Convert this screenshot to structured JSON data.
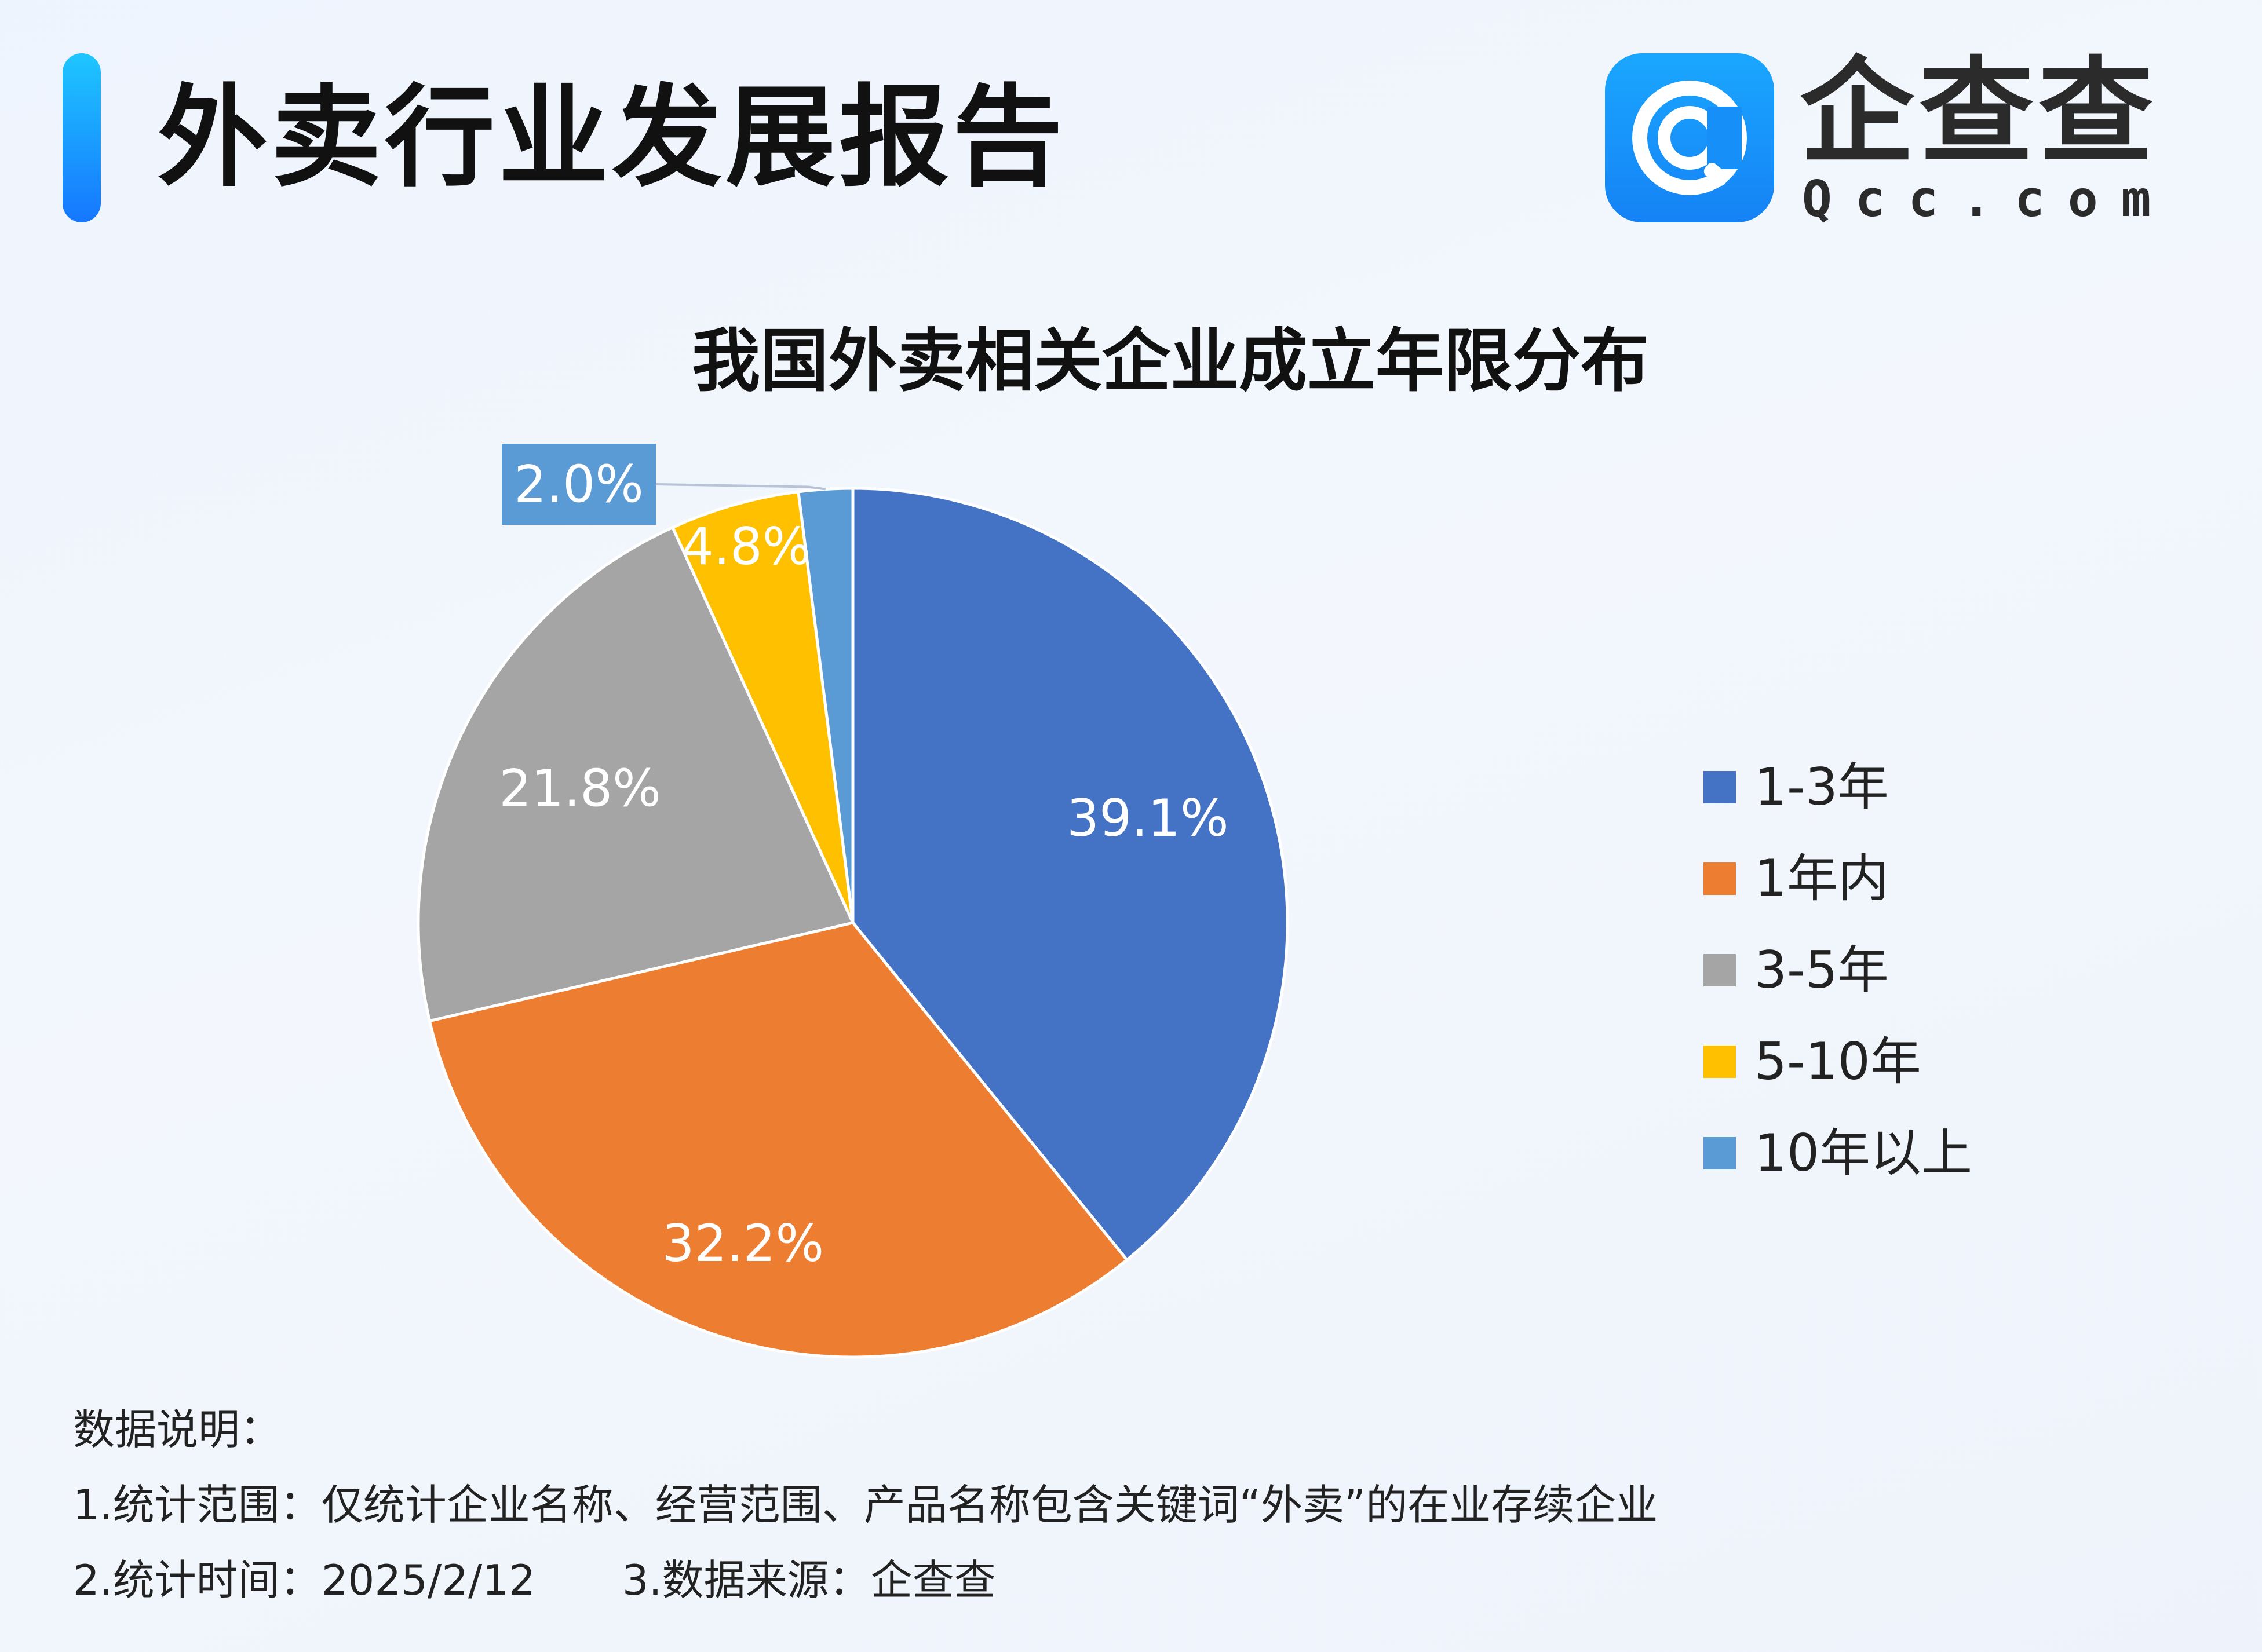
{
  "header": {
    "title": "外卖行业发展报告"
  },
  "logo": {
    "name": "企查查",
    "domain": "Qcc.com"
  },
  "colors": {
    "accent": "#1677ff",
    "series": [
      "#4472c4",
      "#ed7d31",
      "#a5a5a5",
      "#ffc000",
      "#5b9bd5"
    ],
    "callout_bg": "#5b9bd5"
  },
  "chart_data": {
    "type": "pie",
    "title": "我国外卖相关企业成立年限分布",
    "slices": [
      {
        "label": "1-3年",
        "value": 39.1,
        "display": "39.1%"
      },
      {
        "label": "1年内",
        "value": 32.2,
        "display": "32.2%"
      },
      {
        "label": "3-5年",
        "value": 21.8,
        "display": "21.8%"
      },
      {
        "label": "5-10年",
        "value": 4.8,
        "display": "4.8%"
      },
      {
        "label": "10年以上",
        "value": 2.0,
        "display": "2.0%"
      }
    ],
    "start_angle": "12 o'clock",
    "direction": "clockwise",
    "legend_position": "right"
  },
  "notes": {
    "heading": "数据说明：",
    "scope": "1.统计范围：仅统计企业名称、经营范围、产品名称包含关键词“外卖”的在业存续企业",
    "time": "2.统计时间：2025/2/12",
    "source": "3.数据来源：企查查"
  }
}
